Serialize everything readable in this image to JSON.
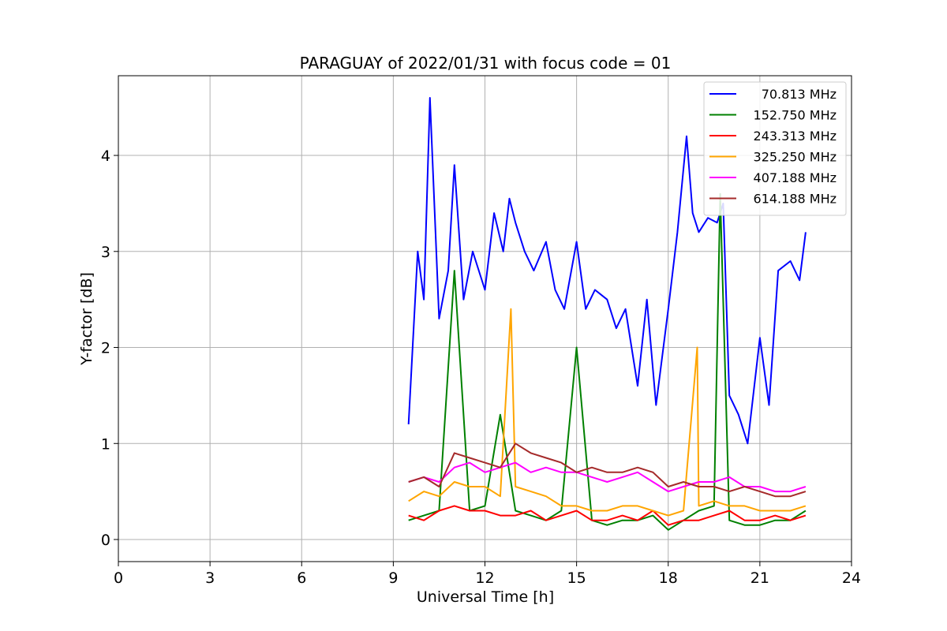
{
  "chart_data": {
    "type": "line",
    "title": "PARAGUAY of 2022/01/31 with focus code = 01",
    "xlabel": "Universal Time [h]",
    "ylabel": "Y-factor [dB]",
    "xlim": [
      0,
      24
    ],
    "ylim": [
      -0.23,
      4.83
    ],
    "xticks": [
      0,
      3,
      6,
      9,
      12,
      15,
      18,
      21,
      24
    ],
    "yticks": [
      0,
      1,
      2,
      3,
      4
    ],
    "grid": true,
    "legend_position": "top-right",
    "series": [
      {
        "name": "70.813 MHz",
        "color": "#0000ff",
        "x": [
          9.5,
          9.8,
          10.0,
          10.2,
          10.5,
          10.8,
          11.0,
          11.3,
          11.6,
          12.0,
          12.3,
          12.6,
          12.8,
          13.0,
          13.3,
          13.6,
          14.0,
          14.3,
          14.6,
          15.0,
          15.3,
          15.6,
          16.0,
          16.3,
          16.6,
          17.0,
          17.3,
          17.6,
          18.0,
          18.3,
          18.6,
          18.8,
          19.0,
          19.3,
          19.6,
          19.8,
          20.0,
          20.3,
          20.6,
          21.0,
          21.3,
          21.6,
          22.0,
          22.3,
          22.5
        ],
        "y": [
          1.2,
          3.0,
          2.5,
          4.6,
          2.3,
          2.8,
          3.9,
          2.5,
          3.0,
          2.6,
          3.4,
          3.0,
          3.55,
          3.3,
          3.0,
          2.8,
          3.1,
          2.6,
          2.4,
          3.1,
          2.4,
          2.6,
          2.5,
          2.2,
          2.4,
          1.6,
          2.5,
          1.4,
          2.4,
          3.2,
          4.2,
          3.4,
          3.2,
          3.35,
          3.3,
          3.5,
          1.5,
          1.3,
          1.0,
          2.1,
          1.4,
          2.8,
          2.9,
          2.7,
          3.2
        ]
      },
      {
        "name": "152.750 MHz",
        "color": "#008000",
        "x": [
          9.5,
          10.0,
          10.5,
          11.0,
          11.5,
          12.0,
          12.5,
          13.0,
          13.5,
          14.0,
          14.5,
          15.0,
          15.5,
          16.0,
          16.5,
          17.0,
          17.5,
          18.0,
          18.5,
          19.0,
          19.5,
          19.7,
          20.0,
          20.5,
          21.0,
          21.5,
          22.0,
          22.5
        ],
        "y": [
          0.2,
          0.25,
          0.3,
          2.8,
          0.3,
          0.35,
          1.3,
          0.3,
          0.25,
          0.2,
          0.3,
          2.0,
          0.2,
          0.15,
          0.2,
          0.2,
          0.25,
          0.1,
          0.2,
          0.3,
          0.35,
          3.6,
          0.2,
          0.15,
          0.15,
          0.2,
          0.2,
          0.3
        ]
      },
      {
        "name": "243.313 MHz",
        "color": "#ff0000",
        "x": [
          9.5,
          10.0,
          10.5,
          11.0,
          11.5,
          12.0,
          12.5,
          13.0,
          13.5,
          14.0,
          14.5,
          15.0,
          15.5,
          16.0,
          16.5,
          17.0,
          17.5,
          18.0,
          18.5,
          19.0,
          19.5,
          20.0,
          20.5,
          21.0,
          21.5,
          22.0,
          22.5
        ],
        "y": [
          0.25,
          0.2,
          0.3,
          0.35,
          0.3,
          0.3,
          0.25,
          0.25,
          0.3,
          0.2,
          0.25,
          0.3,
          0.2,
          0.2,
          0.25,
          0.2,
          0.3,
          0.15,
          0.2,
          0.2,
          0.25,
          0.3,
          0.2,
          0.2,
          0.25,
          0.2,
          0.25
        ]
      },
      {
        "name": "325.250 MHz",
        "color": "#ffa500",
        "x": [
          9.5,
          10.0,
          10.5,
          11.0,
          11.5,
          12.0,
          12.5,
          12.85,
          13.0,
          13.5,
          14.0,
          14.5,
          15.0,
          15.5,
          16.0,
          16.5,
          17.0,
          17.5,
          18.0,
          18.5,
          18.95,
          19.0,
          19.5,
          20.0,
          20.5,
          21.0,
          21.5,
          22.0,
          22.5
        ],
        "y": [
          0.4,
          0.5,
          0.45,
          0.6,
          0.55,
          0.55,
          0.45,
          2.4,
          0.55,
          0.5,
          0.45,
          0.35,
          0.35,
          0.3,
          0.3,
          0.35,
          0.35,
          0.3,
          0.25,
          0.3,
          2.0,
          0.35,
          0.4,
          0.35,
          0.35,
          0.3,
          0.3,
          0.3,
          0.35
        ]
      },
      {
        "name": "407.188 MHz",
        "color": "#ff00ff",
        "x": [
          9.5,
          10.0,
          10.5,
          11.0,
          11.5,
          12.0,
          12.5,
          13.0,
          13.5,
          14.0,
          14.5,
          15.0,
          15.5,
          16.0,
          16.5,
          17.0,
          17.5,
          18.0,
          18.5,
          19.0,
          19.5,
          20.0,
          20.5,
          21.0,
          21.5,
          22.0,
          22.5
        ],
        "y": [
          0.6,
          0.65,
          0.6,
          0.75,
          0.8,
          0.7,
          0.75,
          0.8,
          0.7,
          0.75,
          0.7,
          0.7,
          0.65,
          0.6,
          0.65,
          0.7,
          0.6,
          0.5,
          0.55,
          0.6,
          0.6,
          0.65,
          0.55,
          0.55,
          0.5,
          0.5,
          0.55
        ]
      },
      {
        "name": "614.188 MHz",
        "color": "#a52a2a",
        "x": [
          9.5,
          10.0,
          10.5,
          11.0,
          11.5,
          12.0,
          12.5,
          13.0,
          13.5,
          14.0,
          14.5,
          15.0,
          15.5,
          16.0,
          16.5,
          17.0,
          17.5,
          18.0,
          18.5,
          19.0,
          19.5,
          20.0,
          20.5,
          21.0,
          21.5,
          22.0,
          22.5
        ],
        "y": [
          0.6,
          0.65,
          0.55,
          0.9,
          0.85,
          0.8,
          0.75,
          1.0,
          0.9,
          0.85,
          0.8,
          0.7,
          0.75,
          0.7,
          0.7,
          0.75,
          0.7,
          0.55,
          0.6,
          0.55,
          0.55,
          0.5,
          0.55,
          0.5,
          0.45,
          0.45,
          0.5
        ]
      }
    ]
  }
}
